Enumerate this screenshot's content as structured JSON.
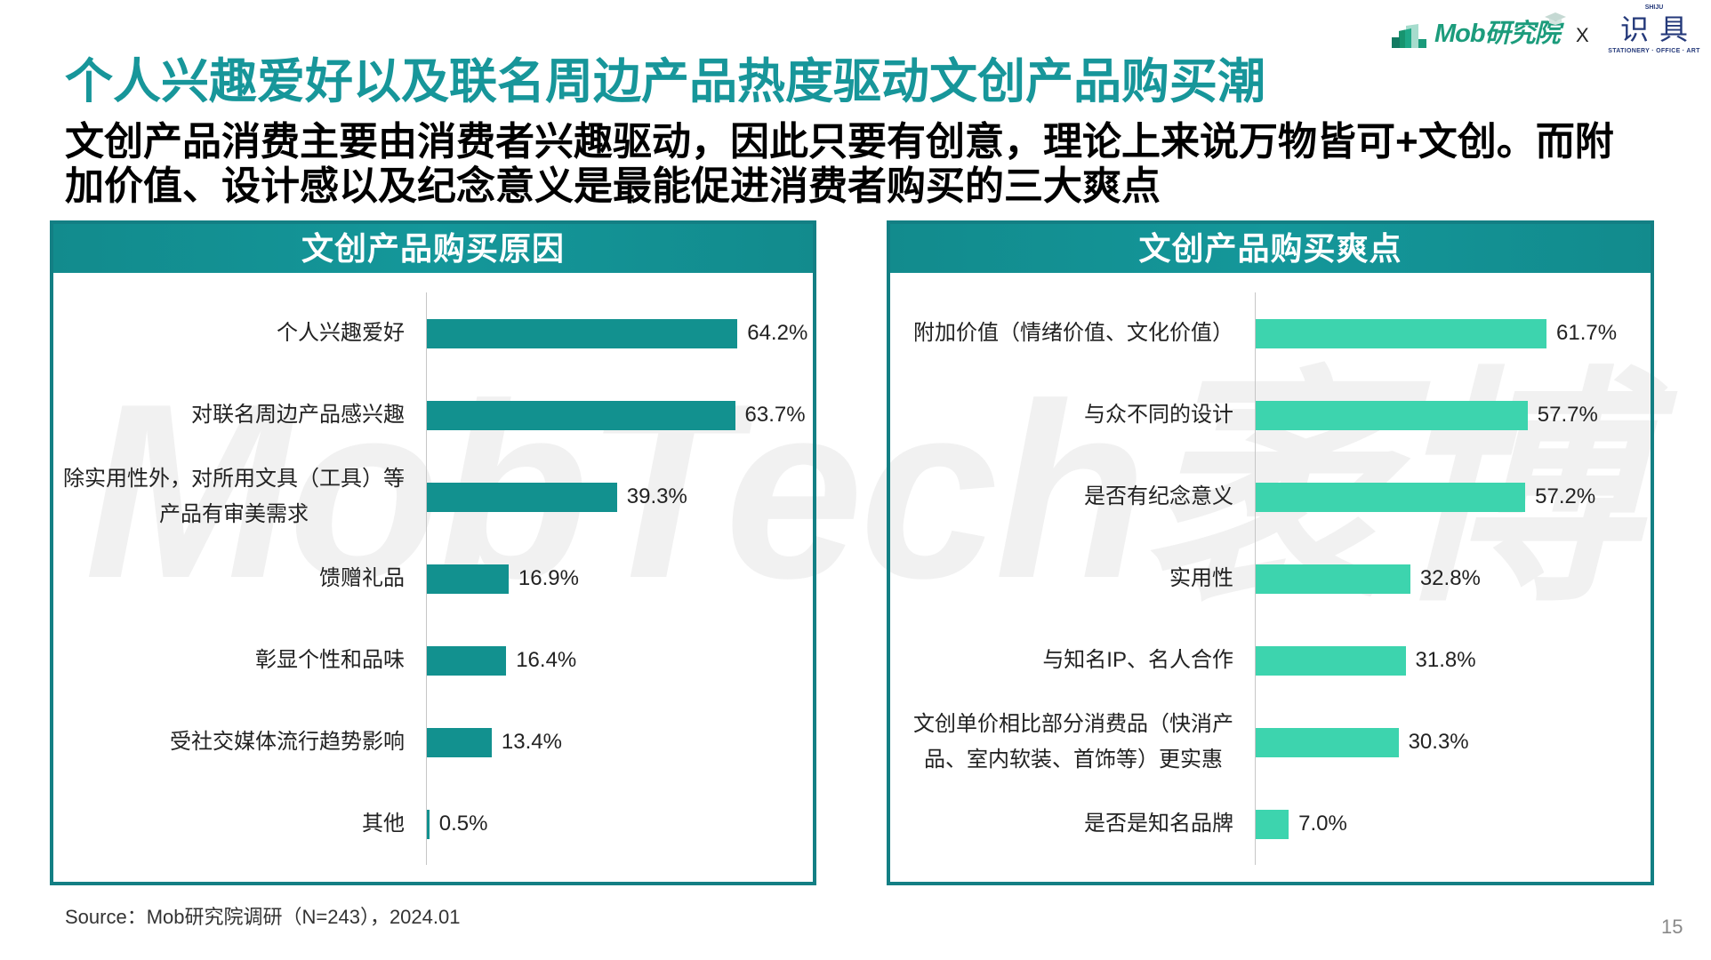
{
  "slide": {
    "title": "个人兴趣爱好以及联名周边产品热度驱动文创产品购买潮",
    "subtitle_lines": [
      "文创产品消费主要由消费者兴趣驱动，因此只要有创意，理论上来说万物皆可+文创。而附",
      "加价值、设计感以及纪念意义是最能促进消费者购买的三大爽点"
    ]
  },
  "logos": {
    "mob": {
      "text": "Mob研究院",
      "icon": "building-bars-icon",
      "cap_icon": "graduation-cap-icon"
    },
    "separator": "X",
    "partner": {
      "top_text": "SHIJU",
      "name": "识具",
      "tagline": "STATIONERY · OFFICE · ART"
    }
  },
  "watermark": "MobTech袤博",
  "colors": {
    "title": "#17969a",
    "panel_header": "#12908f",
    "panel_border": "#137f84",
    "left_bars": "#12918f",
    "right_bars": "#3dd4ae",
    "watermark": "#f1f1f1"
  },
  "chart_data": [
    {
      "type": "bar",
      "orientation": "horizontal",
      "title": "文创产品购买原因",
      "categories": [
        "个人兴趣爱好",
        "对联名周边产品感兴趣",
        "除实用性外，对所用文具（工具）等\n产品有审美需求",
        "馈赠礼品",
        "彰显个性和品味",
        "受社交媒体流行趋势影响",
        "其他"
      ],
      "values": [
        64.2,
        63.7,
        39.3,
        16.9,
        16.4,
        13.4,
        0.5
      ],
      "value_labels": [
        "64.2%",
        "63.7%",
        "39.3%",
        "16.9%",
        "16.4%",
        "13.4%",
        "0.5%"
      ],
      "unit": "%",
      "xlabel": "",
      "ylabel": "",
      "grid": false,
      "legend": null,
      "bar_color": "#12918f"
    },
    {
      "type": "bar",
      "orientation": "horizontal",
      "title": "文创产品购买爽点",
      "categories": [
        "附加价值（情绪价值、文化价值）",
        "与众不同的设计",
        "是否有纪念意义",
        "实用性",
        "与知名IP、名人合作",
        "文创单价相比部分消费品（快消产\n品、室内软装、首饰等）更实惠",
        "是否是知名品牌"
      ],
      "values": [
        61.7,
        57.7,
        57.2,
        32.8,
        31.8,
        30.3,
        7.0
      ],
      "value_labels": [
        "61.7%",
        "57.7%",
        "57.2%",
        "32.8%",
        "31.8%",
        "30.3%",
        "7.0%"
      ],
      "unit": "%",
      "xlabel": "",
      "ylabel": "",
      "grid": false,
      "legend": null,
      "bar_color": "#3dd4ae"
    }
  ],
  "footer": {
    "source": "Source：Mob研究院调研（N=243），2024.01",
    "page_number": "15"
  }
}
